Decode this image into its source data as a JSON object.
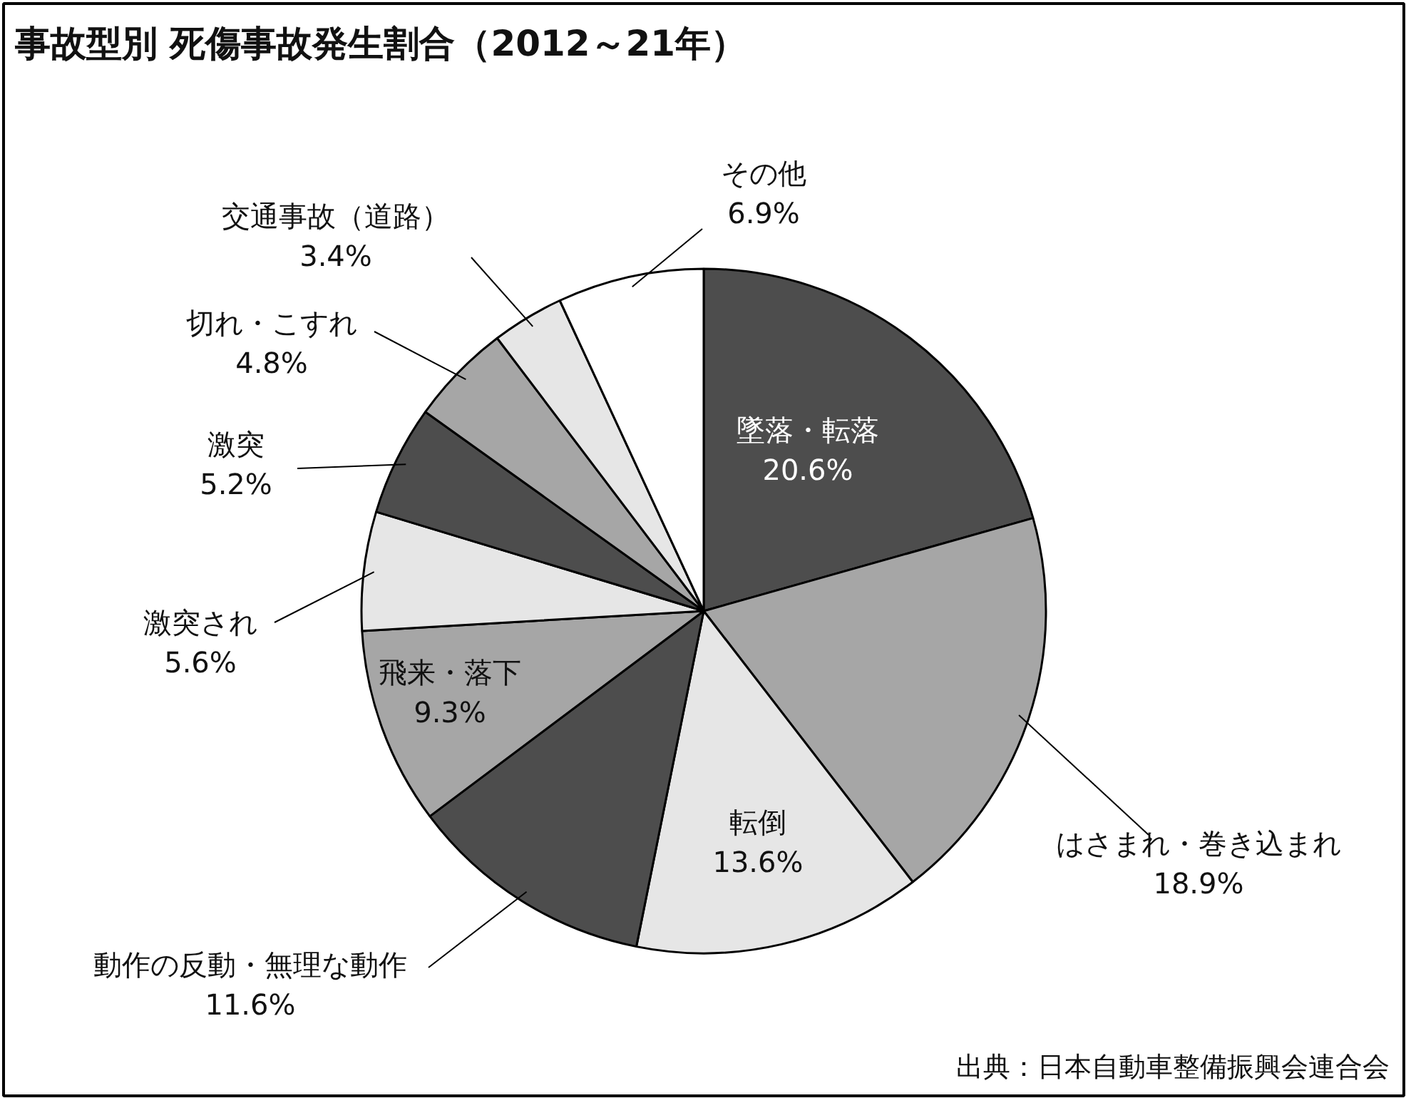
{
  "chart_data": {
    "type": "pie",
    "title": "事故型別 死傷事故発生割合（2012～21年）",
    "categories": [
      "墜落・転落",
      "はさまれ・巻き込まれ",
      "転倒",
      "動作の反動・無理な動作",
      "飛来・落下",
      "激突され",
      "激突",
      "切れ・こすれ",
      "交通事故（道路）",
      "その他"
    ],
    "values": [
      20.6,
      18.9,
      13.6,
      11.6,
      9.3,
      5.6,
      5.2,
      4.8,
      3.4,
      6.9
    ],
    "value_labels": [
      "20.6%",
      "18.9%",
      "13.6%",
      "11.6%",
      "9.3%",
      "5.6%",
      "5.2%",
      "4.8%",
      "3.4%",
      "6.9%"
    ],
    "colors": [
      "#4d4d4d",
      "#a6a6a6",
      "#e6e6e6",
      "#4d4d4d",
      "#a6a6a6",
      "#e6e6e6",
      "#4d4d4d",
      "#a6a6a6",
      "#e6e6e6",
      "#ffffff"
    ],
    "annotations": [
      "出典：日本自動車整備振興会連合会"
    ]
  }
}
